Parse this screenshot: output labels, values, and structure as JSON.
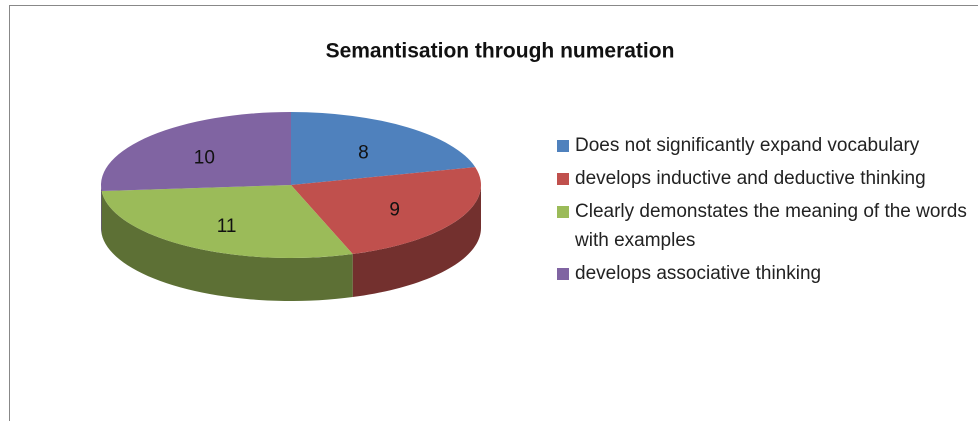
{
  "chart_data": {
    "type": "pie",
    "title": "Semantisation through numeration",
    "categories": [
      "Does not significantly expand vocabulary",
      "develops inductive and deductive thinking",
      "Clearly demonstates the meaning of the words with examples",
      "develops associative thinking"
    ],
    "values": [
      8,
      9,
      11,
      10
    ],
    "colors": [
      "#4f81bd",
      "#c0504d",
      "#9bbb59",
      "#8064a2"
    ],
    "legend": "right"
  }
}
